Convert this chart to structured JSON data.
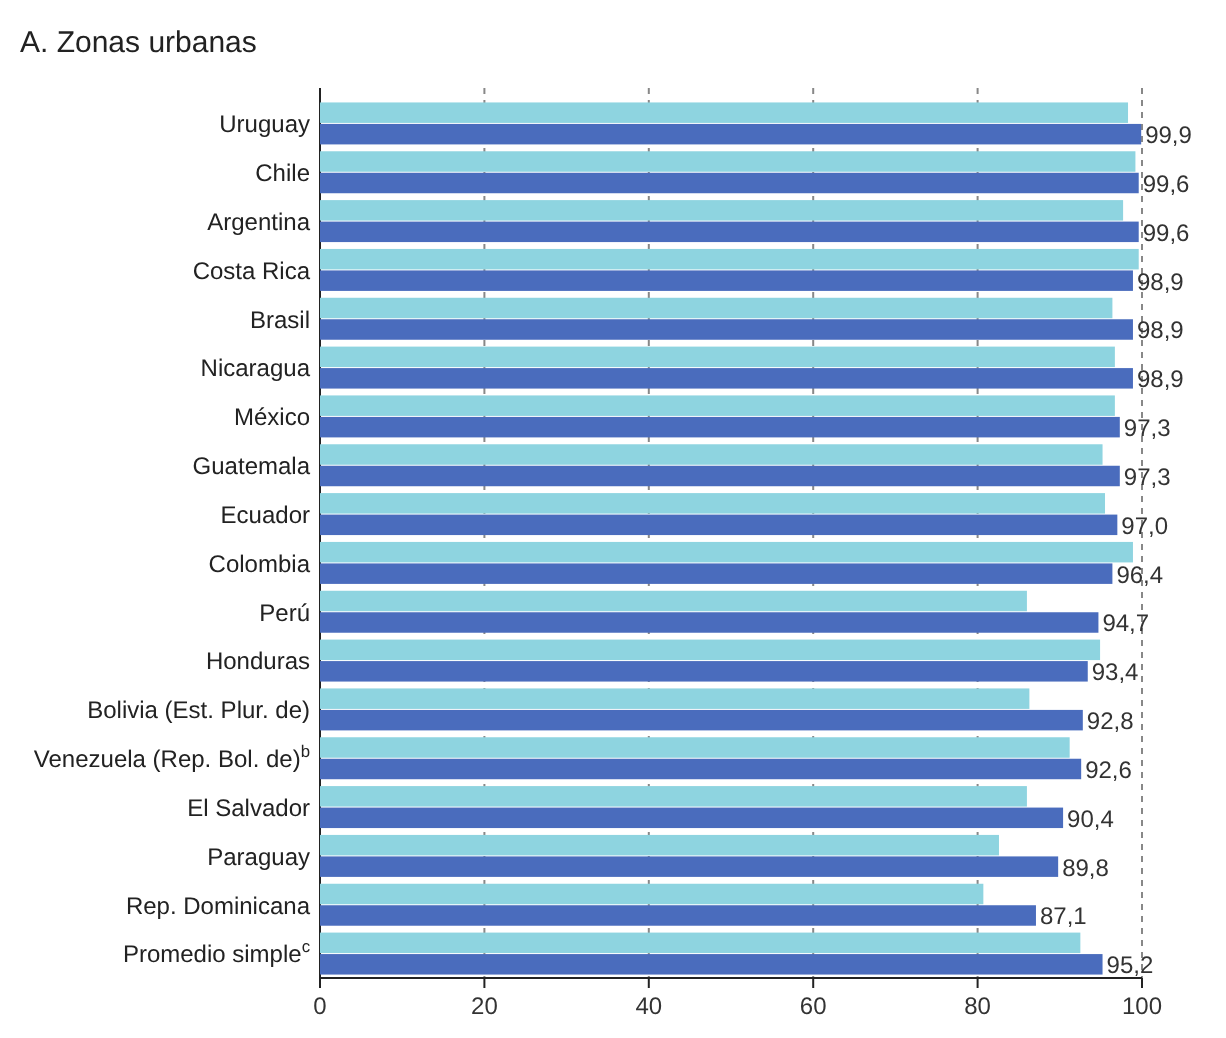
{
  "chart_data": {
    "type": "bar",
    "orientation": "horizontal",
    "title": "A. Zonas urbanas",
    "categories": [
      "Uruguay",
      "Chile",
      "Argentina",
      "Costa Rica",
      "Brasil",
      "Nicaragua",
      "México",
      "Guatemala",
      "Ecuador",
      "Colombia",
      "Perú",
      "Honduras",
      "Bolivia (Est. Plur. de)",
      "Venezuela (Rep. Bol. de)$^{b}$",
      "El Salvador",
      "Paraguay",
      "Rep. Dominicana",
      "Promedio simple$^{c}$"
    ],
    "series": [
      {
        "color": "#8ed4e0",
        "values": [
          98.3,
          99.2,
          97.7,
          99.6,
          96.4,
          96.7,
          96.7,
          95.2,
          95.5,
          98.9,
          86.0,
          94.9,
          86.3,
          91.2,
          86.0,
          82.6,
          80.7,
          92.5
        ]
      },
      {
        "color": "#4a6cbd",
        "values": [
          99.9,
          99.6,
          99.6,
          98.9,
          98.9,
          98.9,
          97.3,
          97.3,
          97.0,
          96.4,
          94.7,
          93.4,
          92.8,
          92.6,
          90.4,
          89.8,
          87.1,
          95.2
        ],
        "value_labels": [
          "99,9",
          "99,6",
          "99,6",
          "98,9",
          "98,9",
          "98,9",
          "97,3",
          "97,3",
          "97,0",
          "96,4",
          "94,7",
          "93,4",
          "92,8",
          "92,6",
          "90,4",
          "89,8",
          "87,1",
          "95,2"
        ]
      }
    ],
    "xlim": [
      0,
      100
    ],
    "xticks": [
      0,
      20,
      40,
      60,
      80,
      100
    ],
    "grid": "x"
  }
}
